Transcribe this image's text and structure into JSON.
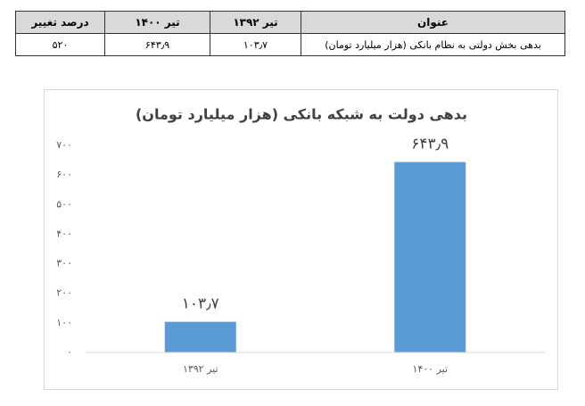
{
  "table": {
    "header": [
      "عنوان",
      "تیر ۱۳۹۲",
      "تیر ۱۴۰۰",
      "درصد تغییر"
    ],
    "rows": [
      [
        "بدهی بخش دولتی به نظام بانکی (هزار میلیارد تومان)",
        "۱۰۳٫۷",
        "۶۴۳٫۹",
        "۵۲۰"
      ]
    ]
  },
  "chart_data": {
    "type": "bar",
    "title": "بدهی دولت به شبکه بانکی (هزار میلیارد تومان)",
    "categories": [
      "تیر ۱۳۹۲",
      "تیر ۱۴۰۰"
    ],
    "values": [
      103.7,
      643.9
    ],
    "value_labels": [
      "۱۰۳٫۷",
      "۶۴۳٫۹"
    ],
    "color": "#5b9bd5",
    "ylim": [
      0,
      700
    ],
    "yticks": [
      {
        "value": 0,
        "label": "۰"
      },
      {
        "value": 100,
        "label": "۱۰۰"
      },
      {
        "value": 200,
        "label": "۲۰۰"
      },
      {
        "value": 300,
        "label": "۳۰۰"
      },
      {
        "value": 400,
        "label": "۴۰۰"
      },
      {
        "value": 500,
        "label": "۵۰۰"
      },
      {
        "value": 600,
        "label": "۶۰۰"
      },
      {
        "value": 700,
        "label": "۷۰۰"
      }
    ],
    "grid": false
  }
}
